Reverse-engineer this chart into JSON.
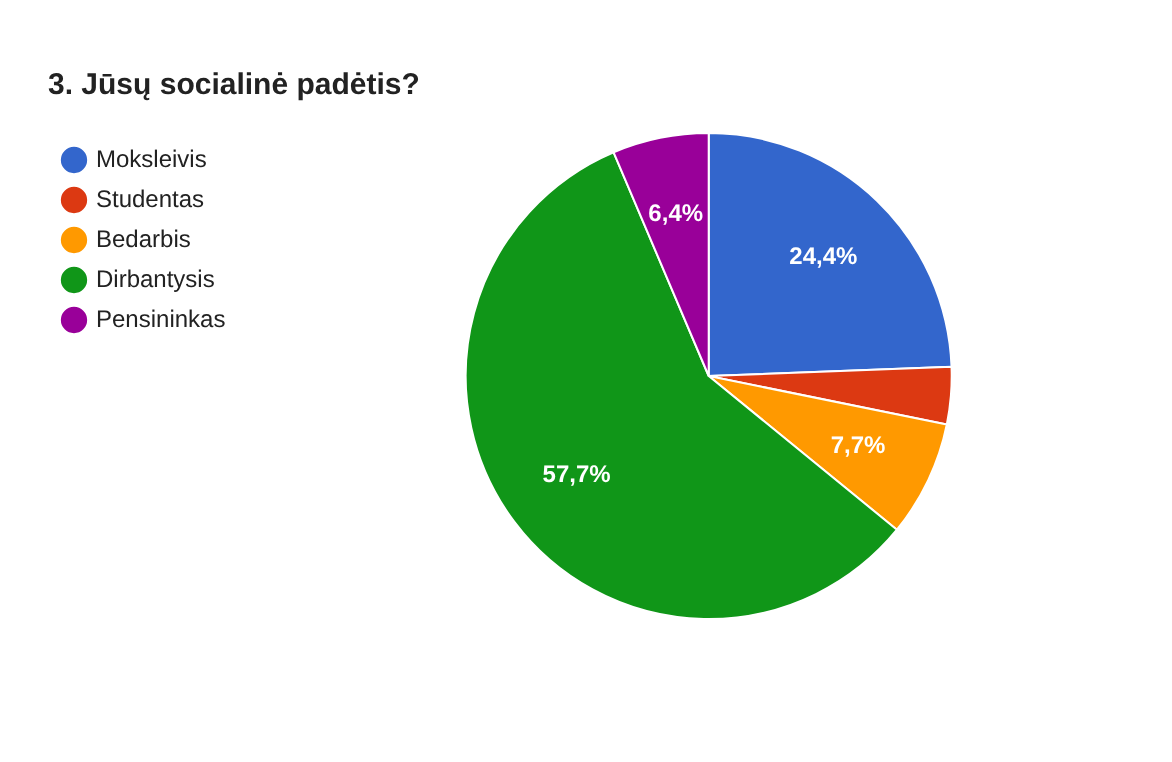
{
  "chart_data": {
    "type": "pie",
    "title": "3. Jūsų socialinė padėtis?",
    "categories": [
      "Moksleivis",
      "Studentas",
      "Bedarbis",
      "Dirbantysis",
      "Pensininkas"
    ],
    "values": [
      24.4,
      3.8,
      7.7,
      57.7,
      6.4
    ],
    "colors": [
      "#3366cc",
      "#dc3912",
      "#ff9900",
      "#109618",
      "#990099"
    ],
    "value_labels": [
      "24,4%",
      null,
      "7,7%",
      "57,7%",
      "6,4%"
    ],
    "legend": "top left"
  }
}
